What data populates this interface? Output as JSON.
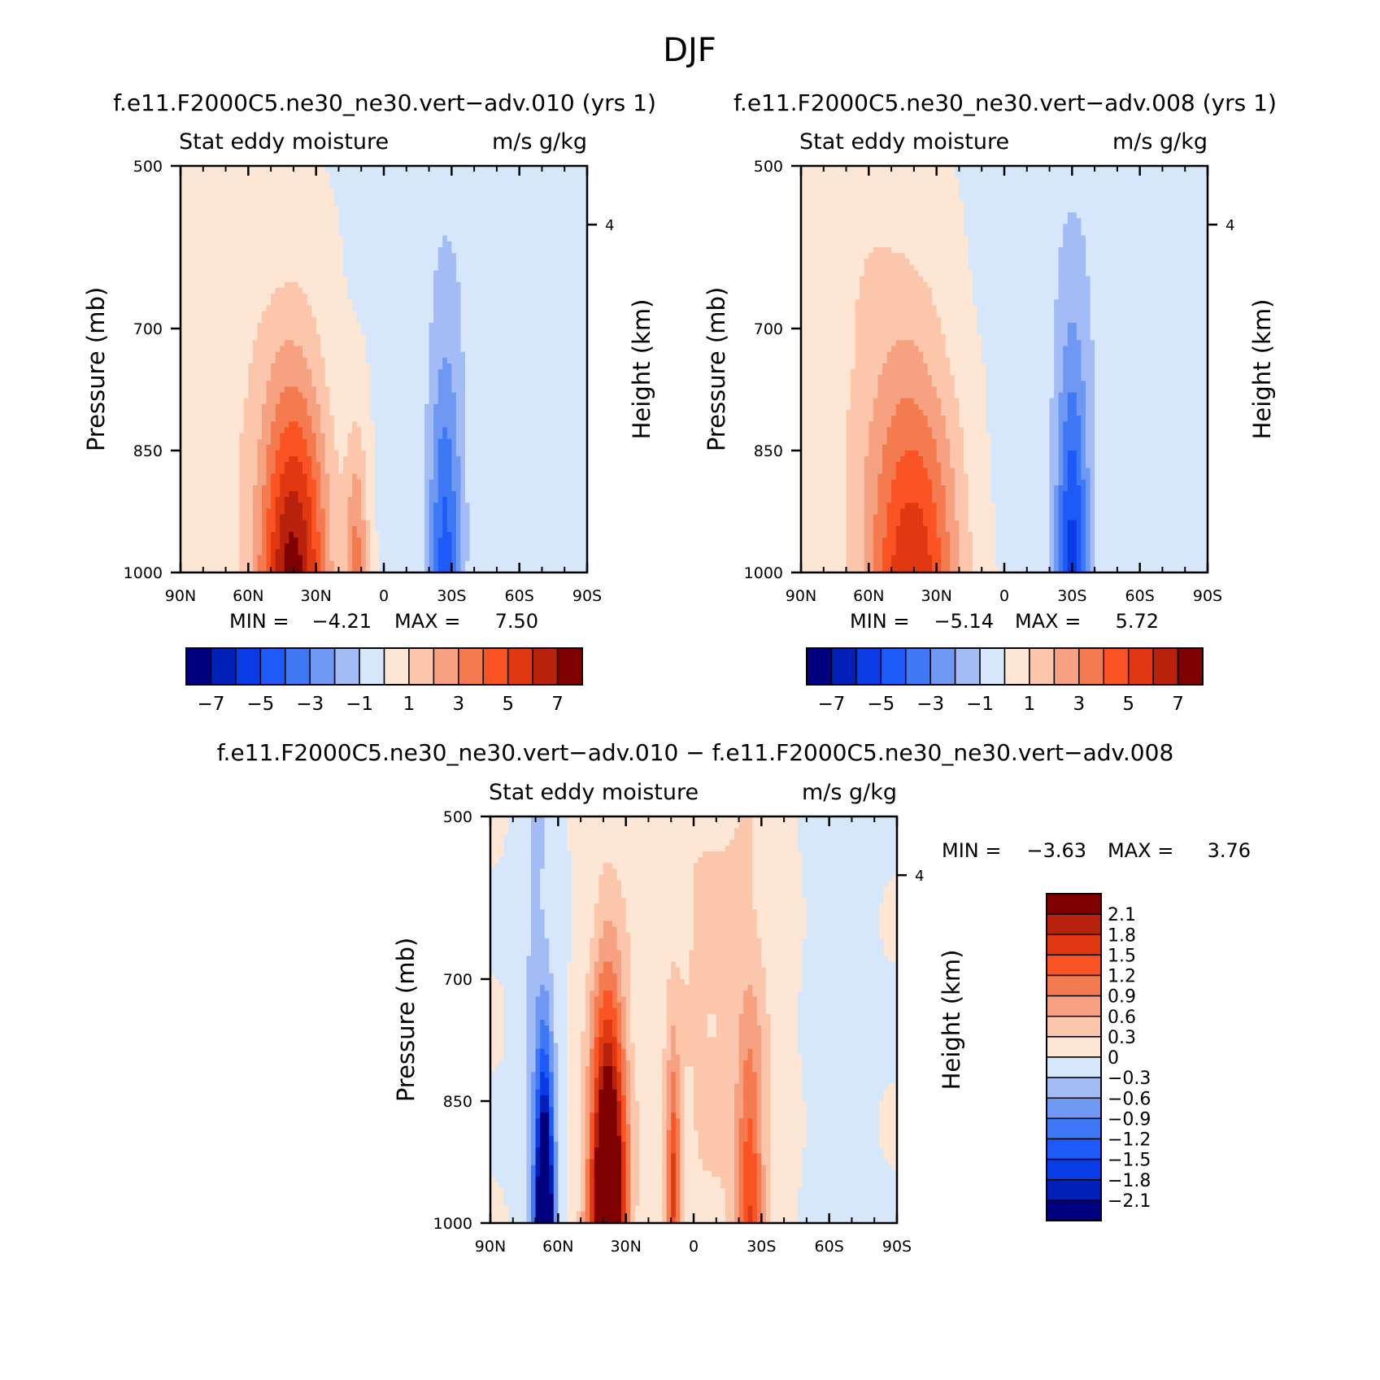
{
  "figure_title": "DJF",
  "palette": {
    "full": [
      "#00007f",
      "#0020b8",
      "#0a3ce6",
      "#1e5af8",
      "#3f78f5",
      "#6f98f3",
      "#a3bcf6",
      "#d6e6fb",
      "#fde6d4",
      "#fbc6ab",
      "#f6a181",
      "#f47a4f",
      "#fa5424",
      "#e03810",
      "#b8220c",
      "#7f0000"
    ],
    "blues_light_to_dark": [
      "#d6e6fb",
      "#a3bcf6",
      "#6f98f3",
      "#3f78f5",
      "#1e5af8",
      "#0a3ce6",
      "#0020b8",
      "#00007f"
    ],
    "reds_light_to_dark": [
      "#fde6d4",
      "#fbc6ab",
      "#f6a181",
      "#f47a4f",
      "#fa5424",
      "#e03810",
      "#b8220c",
      "#7f0000"
    ]
  },
  "chart_data": [
    {
      "type": "heatmap",
      "title": "f.e11.F2000C5.ne30_ne30.vert−adv.010 (yrs 1)",
      "left_subtitle": "Stat eddy moisture",
      "right_subtitle": "m/s g/kg",
      "ylabel": "Pressure (mb)",
      "ylabel_right": "Height (km)",
      "x_ticks": [
        "90N",
        "60N",
        "30N",
        "0",
        "30S",
        "60S",
        "90S"
      ],
      "x_range": [
        90,
        -90
      ],
      "y_ticks": [
        "500",
        "700",
        "850",
        "1000"
      ],
      "y_range": [
        500,
        1000
      ],
      "height_ticks": [
        "4"
      ],
      "min_label": "MIN =",
      "min_value": "−4.21",
      "max_label": "MAX =",
      "max_value": "7.50",
      "colorbar_ticks": [
        "−7",
        "−5",
        "−3",
        "−1",
        "1",
        "3",
        "5",
        "7"
      ],
      "contour_levels": [
        -7,
        -6,
        -5,
        -4,
        -3,
        -2,
        -1,
        0,
        1,
        2,
        3,
        4,
        5,
        6,
        7
      ],
      "features": [
        {
          "lat": 40,
          "p": 985,
          "peak": 7.5,
          "sigma_lat": 15,
          "sigma_p": 280,
          "kind": "plume"
        },
        {
          "lat": 12,
          "p": 960,
          "peak": 3.2,
          "sigma_lat": 5,
          "sigma_p": 150,
          "kind": "plume"
        },
        {
          "lat": 70,
          "p": 700,
          "peak": 0.7,
          "sigma_lat": 22,
          "sigma_p": 450,
          "kind": "broad"
        },
        {
          "lat": -27,
          "p": 980,
          "peak": -4.2,
          "sigma_lat": 7,
          "sigma_p": 320,
          "kind": "plume"
        },
        {
          "lat": -50,
          "p": 650,
          "peak": -0.7,
          "sigma_lat": 45,
          "sigma_p": 600,
          "kind": "broad"
        }
      ]
    },
    {
      "type": "heatmap",
      "title": "f.e11.F2000C5.ne30_ne30.vert−adv.008 (yrs 1)",
      "left_subtitle": "Stat eddy moisture",
      "right_subtitle": "m/s g/kg",
      "ylabel": "Pressure (mb)",
      "ylabel_right": "Height (km)",
      "x_ticks": [
        "90N",
        "60N",
        "30N",
        "0",
        "30S",
        "60S",
        "90S"
      ],
      "x_range": [
        90,
        -90
      ],
      "y_ticks": [
        "500",
        "700",
        "850",
        "1000"
      ],
      "y_range": [
        500,
        1000
      ],
      "height_ticks": [
        "4"
      ],
      "min_label": "MIN =",
      "min_value": "−5.14",
      "max_label": "MAX =",
      "max_value": "5.72",
      "colorbar_ticks": [
        "−7",
        "−5",
        "−3",
        "−1",
        "1",
        "3",
        "5",
        "7"
      ],
      "contour_levels": [
        -7,
        -6,
        -5,
        -4,
        -3,
        -2,
        -1,
        0,
        1,
        2,
        3,
        4,
        5,
        6,
        7
      ],
      "features": [
        {
          "lat": 40,
          "p": 990,
          "peak": 5.7,
          "sigma_lat": 20,
          "sigma_p": 300,
          "kind": "plume"
        },
        {
          "lat": 60,
          "p": 700,
          "peak": 0.8,
          "sigma_lat": 25,
          "sigma_p": 450,
          "kind": "broad"
        },
        {
          "lat": -30,
          "p": 985,
          "peak": -5.1,
          "sigma_lat": 7,
          "sigma_p": 330,
          "kind": "plume"
        },
        {
          "lat": -45,
          "p": 650,
          "peak": -0.7,
          "sigma_lat": 50,
          "sigma_p": 600,
          "kind": "broad"
        }
      ]
    },
    {
      "type": "heatmap",
      "title": "f.e11.F2000C5.ne30_ne30.vert−adv.010 − f.e11.F2000C5.ne30_ne30.vert−adv.008",
      "left_subtitle": "Stat eddy moisture",
      "right_subtitle": "m/s g/kg",
      "ylabel": "Pressure (mb)",
      "ylabel_right": "Height (km)",
      "x_ticks": [
        "90N",
        "60N",
        "30N",
        "0",
        "30S",
        "60S",
        "90S"
      ],
      "x_range": [
        90,
        -90
      ],
      "y_ticks": [
        "500",
        "700",
        "850",
        "1000"
      ],
      "y_range": [
        500,
        1000
      ],
      "height_ticks": [
        "4"
      ],
      "min_label": "MIN =",
      "min_value": "−3.63",
      "max_label": "MAX =",
      "max_value": "3.76",
      "colorbar_ticks": [
        "2.1",
        "1.8",
        "1.5",
        "1.2",
        "0.9",
        "0.6",
        "0.3",
        "0",
        "−0.3",
        "−0.6",
        "−0.9",
        "−1.2",
        "−1.5",
        "−1.8",
        "−2.1"
      ],
      "contour_levels": [
        -2.1,
        -1.8,
        -1.5,
        -1.2,
        -0.9,
        -0.6,
        -0.3,
        0,
        0.3,
        0.6,
        0.9,
        1.2,
        1.5,
        1.8,
        2.1
      ],
      "features": [
        {
          "lat": 38,
          "p": 990,
          "peak": 3.76,
          "sigma_lat": 8,
          "sigma_p": 330,
          "kind": "plume"
        },
        {
          "lat": 9,
          "p": 930,
          "peak": 1.5,
          "sigma_lat": 3,
          "sigma_p": 160,
          "kind": "plume"
        },
        {
          "lat": -25,
          "p": 950,
          "peak": 1.3,
          "sigma_lat": 6,
          "sigma_p": 250,
          "kind": "plume"
        },
        {
          "lat": 66,
          "p": 990,
          "peak": -3.63,
          "sigma_lat": 4,
          "sigma_p": 200,
          "kind": "plume"
        },
        {
          "lat": 70,
          "p": 700,
          "peak": -0.35,
          "sigma_lat": 8,
          "sigma_p": 500,
          "kind": "broad"
        },
        {
          "lat": -62,
          "p": 700,
          "peak": -0.2,
          "sigma_lat": 14,
          "sigma_p": 600,
          "kind": "broad"
        },
        {
          "lat": -10,
          "p": 700,
          "peak": 0.35,
          "sigma_lat": 30,
          "sigma_p": 600,
          "kind": "broad"
        }
      ]
    }
  ]
}
